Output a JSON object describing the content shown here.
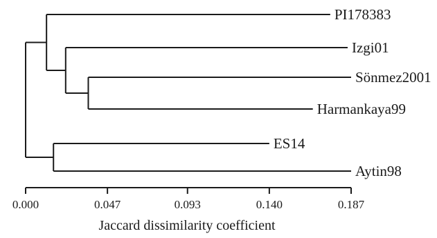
{
  "chart_data": {
    "type": "dendrogram",
    "xlabel": "Jaccard dissimilarity coefficient",
    "xlim": [
      0.0,
      0.187
    ],
    "ticks": [
      "0.000",
      "0.047",
      "0.093",
      "0.140",
      "0.187"
    ],
    "tick_values": [
      0.0,
      0.047,
      0.093,
      0.14,
      0.187
    ],
    "leaves": [
      "PI178383",
      "Izgi01",
      "Sönmez2001",
      "Harmankaya99",
      "ES14",
      "Aytin98"
    ],
    "leaf_heights": {
      "PI178383": 0.175,
      "Izgi01": 0.185,
      "Sönmez2001": 0.187,
      "Harmankaya99": 0.165,
      "ES14": 0.14,
      "Aytin98": 0.187
    },
    "merges": [
      {
        "a": "Sönmez2001",
        "b": "Harmankaya99",
        "height": 0.036,
        "id": "C1"
      },
      {
        "a": "Izgi01",
        "b": "C1",
        "height": 0.023,
        "id": "C2"
      },
      {
        "a": "PI178383",
        "b": "C2",
        "height": 0.012,
        "id": "C3"
      },
      {
        "a": "ES14",
        "b": "Aytin98",
        "height": 0.016,
        "id": "C4"
      },
      {
        "a": "C3",
        "b": "C4",
        "height": 0.0,
        "id": "ROOT"
      }
    ]
  }
}
